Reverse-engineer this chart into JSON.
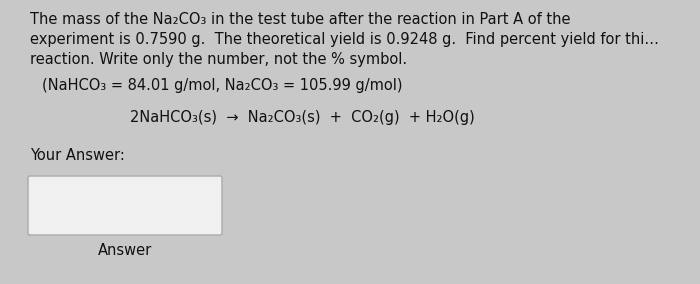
{
  "bg_color": "#c8c8c8",
  "line1": "The mass of the Na₂CO₃ in the test tube after the reaction in Part A of the",
  "line2": "experiment is 0.7590 g.  The theoretical yield is 0.9248 g.  Find percent yield for thi…",
  "line3": "reaction. Write only the number, not the % symbol.",
  "hint_line": "(NaHCO₃ = 84.01 g/mol, Na₂CO₃ = 105.99 g/mol)",
  "equation": "2NaHCO₃(s)  →  Na₂CO₃(s)  +  CO₂(g)  + H₂O(g)",
  "your_answer_label": "Your Answer:",
  "answer_label": "Answer",
  "text_color": "#111111",
  "box_color": "#f0f0f0",
  "box_edge_color": "#aaaaaa",
  "font_size_main": 10.5,
  "font_size_hint": 10.5,
  "font_size_eq": 10.5,
  "font_size_label": 10.5,
  "font_weight": "normal"
}
